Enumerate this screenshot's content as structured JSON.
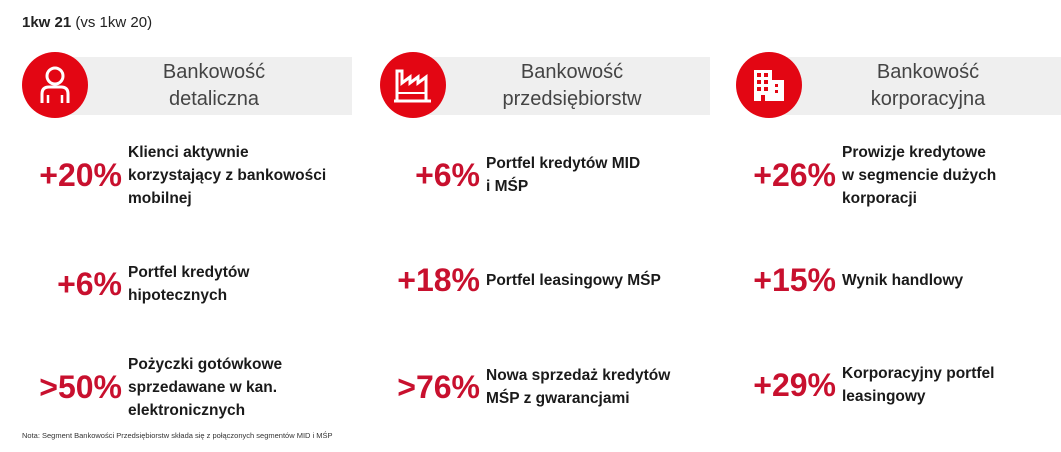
{
  "period": {
    "main": "1kw 21",
    "comparison": "(vs 1kw 20)"
  },
  "colors": {
    "accent": "#e30613",
    "percent": "#c8102e",
    "header_bg": "#efefef"
  },
  "segments": [
    {
      "icon": "person-icon",
      "title_lines": [
        "Bankowość",
        "detaliczna"
      ],
      "metrics": [
        {
          "value": "+20%",
          "lines": [
            "Klienci aktywnie",
            "korzystający z bankowości",
            "mobilnej"
          ]
        },
        {
          "value": "+6%",
          "lines": [
            "Portfel kredytów",
            "hipotecznych"
          ]
        },
        {
          "value": ">50%",
          "lines": [
            "Pożyczki gotówkowe",
            "sprzedawane w kan.",
            "elektronicznych"
          ]
        }
      ]
    },
    {
      "icon": "factory-icon",
      "title_lines": [
        "Bankowość",
        "przedsiębiorstw"
      ],
      "metrics": [
        {
          "value": "+6%",
          "lines": [
            "Portfel kredytów MID",
            "i MŚP"
          ]
        },
        {
          "value": "+18%",
          "lines": [
            "Portfel leasingowy MŚP"
          ]
        },
        {
          "value": ">76%",
          "lines": [
            "Nowa sprzedaż kredytów",
            "MŚP z gwarancjami"
          ]
        }
      ]
    },
    {
      "icon": "office-building-icon",
      "title_lines": [
        "Bankowość",
        "korporacyjna"
      ],
      "metrics": [
        {
          "value": "+26%",
          "lines": [
            "Prowizje kredytowe",
            "w segmencie dużych",
            "korporacji"
          ]
        },
        {
          "value": "+15%",
          "lines": [
            "Wynik handlowy"
          ]
        },
        {
          "value": "+29%",
          "lines": [
            "Korporacyjny portfel",
            "leasingowy"
          ]
        }
      ]
    }
  ],
  "footnote": "Nota: Segment Bankowości Przedsiębiorstw składa się z połączonych segmentów MID i MŚP"
}
